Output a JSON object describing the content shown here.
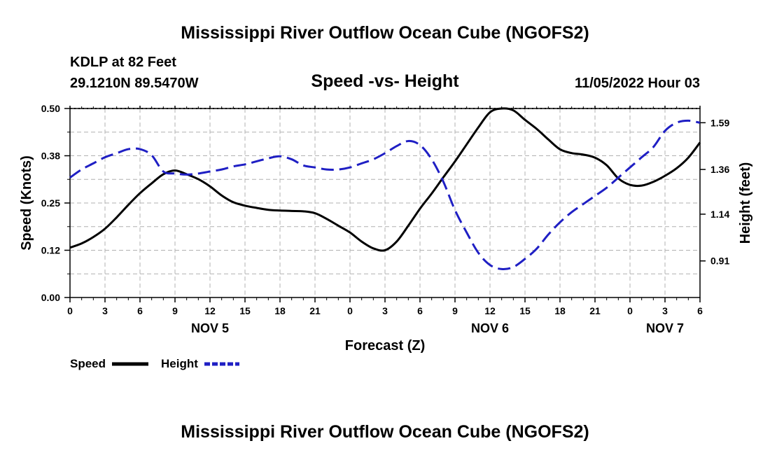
{
  "page": {
    "title": "Mississippi River Outflow Ocean Cube (NGOFS2)",
    "footer_title": "Mississippi River Outflow Ocean Cube (NGOFS2)",
    "station": "KDLP at 82 Feet",
    "coords": "29.1210N  89.5470W",
    "subtitle": "Speed -vs- Height",
    "datetime": "11/05/2022 Hour 03"
  },
  "chart_data": {
    "type": "line",
    "title": "Speed -vs- Height",
    "xlabel": "Forecast (Z)",
    "ylabel": "Speed (Knots)",
    "y2label": "Height (feet)",
    "x_range": [
      0,
      54
    ],
    "ylim": [
      0,
      0.5
    ],
    "y2lim": [
      0.73,
      1.66
    ],
    "x_ticks": [
      {
        "x": 0,
        "label": "0"
      },
      {
        "x": 3,
        "label": "3"
      },
      {
        "x": 6,
        "label": "6"
      },
      {
        "x": 9,
        "label": "9"
      },
      {
        "x": 12,
        "label": "12"
      },
      {
        "x": 15,
        "label": "15"
      },
      {
        "x": 18,
        "label": "18"
      },
      {
        "x": 21,
        "label": "21"
      },
      {
        "x": 24,
        "label": "0"
      },
      {
        "x": 27,
        "label": "3"
      },
      {
        "x": 30,
        "label": "6"
      },
      {
        "x": 33,
        "label": "9"
      },
      {
        "x": 36,
        "label": "12"
      },
      {
        "x": 39,
        "label": "15"
      },
      {
        "x": 42,
        "label": "18"
      },
      {
        "x": 45,
        "label": "21"
      },
      {
        "x": 48,
        "label": "0"
      },
      {
        "x": 51,
        "label": "3"
      },
      {
        "x": 54,
        "label": "6"
      }
    ],
    "day_labels": [
      {
        "x": 12,
        "label": "NOV 5"
      },
      {
        "x": 36,
        "label": "NOV 6"
      },
      {
        "x": 51,
        "label": "NOV 7"
      }
    ],
    "y_ticks": [
      {
        "value": 0.0,
        "label": "0.00"
      },
      {
        "value": 0.125,
        "label": "0.12"
      },
      {
        "value": 0.25,
        "label": "0.25"
      },
      {
        "value": 0.375,
        "label": "0.38"
      },
      {
        "value": 0.5,
        "label": "0.50"
      }
    ],
    "y2_ticks": [
      {
        "value": 0.91,
        "label": "0.91"
      },
      {
        "value": 1.14,
        "label": "1.14"
      },
      {
        "value": 1.36,
        "label": "1.36"
      },
      {
        "value": 1.59,
        "label": "1.59"
      }
    ],
    "x": [
      0,
      1,
      2,
      3,
      4,
      5,
      6,
      7,
      8,
      9,
      10,
      11,
      12,
      13,
      14,
      15,
      16,
      17,
      18,
      19,
      20,
      21,
      22,
      23,
      24,
      25,
      26,
      27,
      28,
      29,
      30,
      31,
      32,
      33,
      34,
      35,
      36,
      37,
      38,
      39,
      40,
      41,
      42,
      43,
      44,
      45,
      46,
      47,
      48,
      49,
      50,
      51,
      52,
      53,
      54
    ],
    "series": [
      {
        "name": "Speed",
        "axis": "left",
        "color": "#000000",
        "dash": "solid",
        "values": [
          0.132,
          0.143,
          0.16,
          0.182,
          0.212,
          0.245,
          0.276,
          0.302,
          0.326,
          0.336,
          0.326,
          0.313,
          0.294,
          0.27,
          0.252,
          0.243,
          0.237,
          0.232,
          0.23,
          0.229,
          0.228,
          0.223,
          0.208,
          0.19,
          0.172,
          0.148,
          0.13,
          0.125,
          0.148,
          0.19,
          0.235,
          0.275,
          0.318,
          0.36,
          0.405,
          0.45,
          0.49,
          0.5,
          0.495,
          0.47,
          0.446,
          0.418,
          0.392,
          0.382,
          0.378,
          0.37,
          0.35,
          0.315,
          0.298,
          0.296,
          0.306,
          0.322,
          0.342,
          0.37,
          0.41
        ]
      },
      {
        "name": "Height",
        "axis": "right",
        "color": "#1f1fc4",
        "dash": "dashed",
        "values": [
          1.32,
          1.36,
          1.39,
          1.42,
          1.44,
          1.46,
          1.46,
          1.43,
          1.35,
          1.34,
          1.335,
          1.34,
          1.35,
          1.36,
          1.375,
          1.385,
          1.4,
          1.415,
          1.425,
          1.41,
          1.38,
          1.37,
          1.36,
          1.36,
          1.37,
          1.39,
          1.41,
          1.44,
          1.475,
          1.5,
          1.48,
          1.41,
          1.3,
          1.16,
          1.05,
          0.95,
          0.89,
          0.87,
          0.88,
          0.92,
          0.97,
          1.04,
          1.1,
          1.15,
          1.19,
          1.23,
          1.27,
          1.32,
          1.37,
          1.42,
          1.47,
          1.55,
          1.59,
          1.6,
          1.59
        ]
      }
    ],
    "legend": [
      {
        "label": "Speed",
        "color": "#000000",
        "dash": "solid"
      },
      {
        "label": "Height",
        "color": "#1f1fc4",
        "dash": "dashed"
      }
    ]
  }
}
